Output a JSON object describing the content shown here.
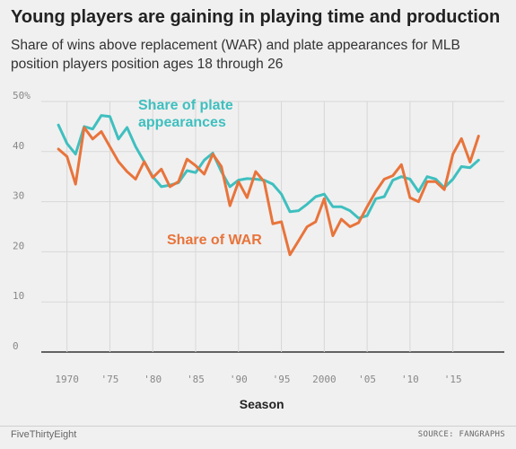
{
  "header": {
    "title": "Young players are gaining in playing time and production",
    "subtitle": "Share of wins above replacement (WAR) and plate appearances for MLB position players position ages 18 through 26"
  },
  "footer": {
    "brand": "FiveThirtyEight",
    "source": "SOURCE: FANGRAPHS"
  },
  "chart_data": {
    "type": "line",
    "xlabel": "Season",
    "ylabel": "",
    "xlim": [
      1967,
      2021
    ],
    "ylim": [
      0,
      50
    ],
    "grid": true,
    "x_ticks": [
      1970,
      1975,
      1980,
      1985,
      1990,
      1995,
      2000,
      2005,
      2010,
      2015
    ],
    "x_tick_labels": [
      "1970",
      "'75",
      "'80",
      "'85",
      "'90",
      "'95",
      "2000",
      "'05",
      "'10",
      "'15"
    ],
    "y_ticks": [
      0,
      10,
      20,
      30,
      40,
      50
    ],
    "y_tick_labels": [
      "0",
      "10",
      "20",
      "30",
      "40",
      "50%"
    ],
    "x": [
      1969,
      1970,
      1971,
      1972,
      1973,
      1974,
      1975,
      1976,
      1977,
      1978,
      1979,
      1980,
      1981,
      1982,
      1983,
      1984,
      1985,
      1986,
      1987,
      1988,
      1989,
      1990,
      1991,
      1992,
      1993,
      1994,
      1995,
      1996,
      1997,
      1998,
      1999,
      2000,
      2001,
      2002,
      2003,
      2004,
      2005,
      2006,
      2007,
      2008,
      2009,
      2010,
      2011,
      2012,
      2013,
      2014,
      2015,
      2016,
      2017,
      2018
    ],
    "series": [
      {
        "name": "Share of plate appearances",
        "color": "#3fbfbf",
        "values": [
          45.3,
          41.6,
          39.5,
          45.0,
          44.5,
          47.2,
          47.0,
          42.5,
          44.8,
          41.0,
          38.0,
          35.0,
          33.0,
          33.3,
          33.8,
          36.2,
          35.8,
          38.3,
          39.7,
          36.0,
          33.0,
          34.3,
          34.6,
          34.5,
          34.3,
          33.5,
          31.5,
          28.0,
          28.2,
          29.5,
          31.0,
          31.5,
          29.0,
          29.0,
          28.2,
          26.7,
          27.2,
          30.6,
          31.0,
          34.3,
          35.0,
          34.5,
          32.0,
          35.0,
          34.5,
          32.8,
          34.5,
          37.0,
          36.8,
          38.3
        ]
      },
      {
        "name": "Share of WAR",
        "color": "#e8743b",
        "values": [
          40.5,
          39.0,
          33.5,
          44.8,
          42.5,
          44.0,
          41.0,
          38.0,
          36.0,
          34.5,
          38.0,
          34.8,
          36.5,
          33.0,
          34.0,
          38.5,
          37.2,
          35.5,
          39.5,
          37.0,
          29.2,
          34.0,
          30.8,
          36.0,
          34.0,
          25.6,
          26.0,
          19.4,
          22.2,
          25.0,
          26.0,
          30.6,
          23.2,
          26.5,
          25.0,
          25.8,
          29.0,
          32.0,
          34.5,
          35.2,
          37.4,
          30.8,
          30.0,
          34.0,
          34.0,
          32.4,
          39.5,
          42.6,
          37.9,
          43.1
        ]
      }
    ],
    "annotations": [
      {
        "series": 0,
        "text_lines": [
          "Share of plate",
          "appearances"
        ]
      },
      {
        "series": 1,
        "text_lines": [
          "Share of WAR"
        ]
      }
    ]
  }
}
